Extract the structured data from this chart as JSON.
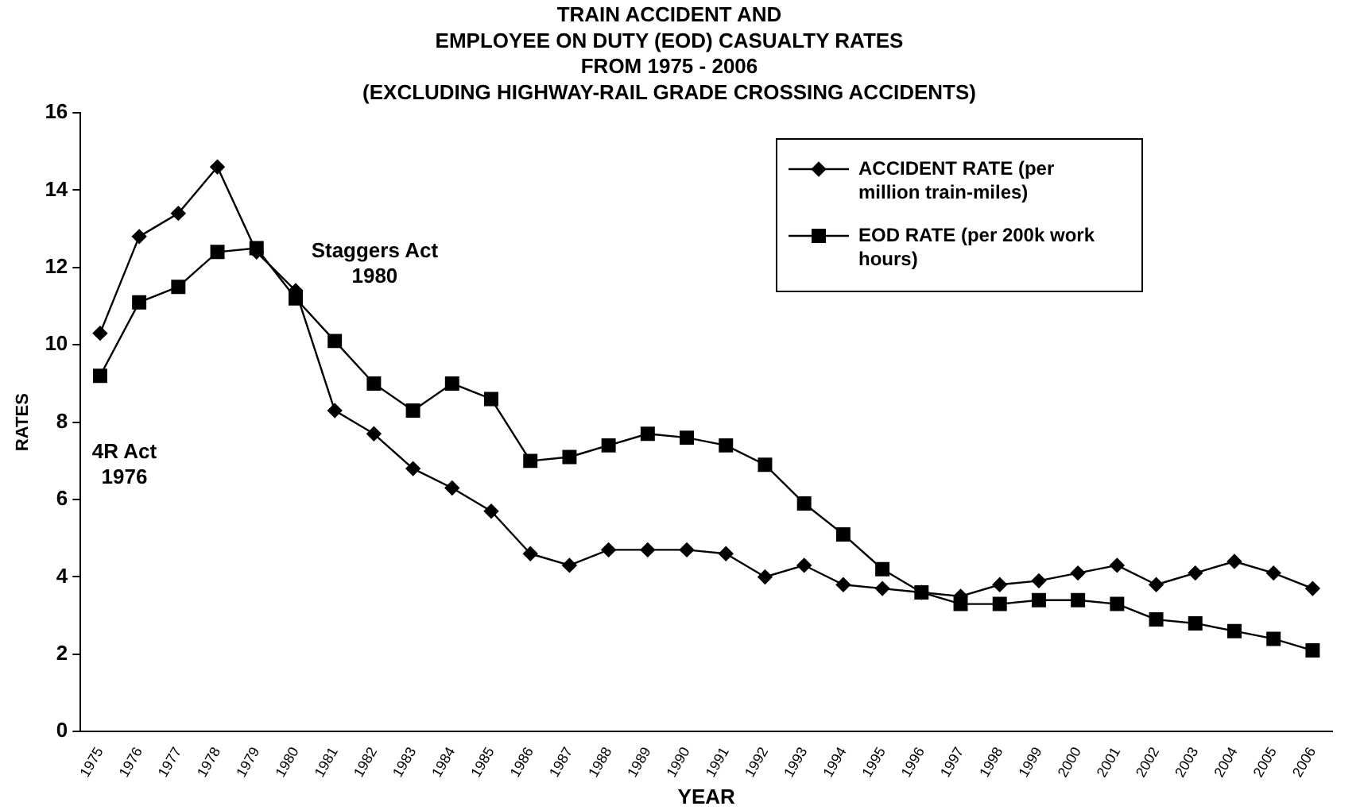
{
  "chart_data": {
    "type": "line",
    "title": "TRAIN ACCIDENT AND\nEMPLOYEE ON DUTY (EOD) CASUALTY RATES\nFROM 1975 - 2006\n(EXCLUDING HIGHWAY-RAIL GRADE CROSSING ACCIDENTS)",
    "xlabel": "YEAR",
    "ylabel": "RATES",
    "categories": [
      "1975",
      "1976",
      "1977",
      "1978",
      "1979",
      "1980",
      "1981",
      "1982",
      "1983",
      "1984",
      "1985",
      "1986",
      "1987",
      "1988",
      "1989",
      "1990",
      "1991",
      "1992",
      "1993",
      "1994",
      "1995",
      "1996",
      "1997",
      "1998",
      "1999",
      "2000",
      "2001",
      "2002",
      "2003",
      "2004",
      "2005",
      "2006"
    ],
    "series": [
      {
        "name": "ACCIDENT RATE (per million train-miles)",
        "color": "#000000",
        "marker": "diamond",
        "values": [
          10.3,
          12.8,
          13.4,
          14.6,
          12.4,
          11.4,
          8.3,
          7.7,
          6.8,
          6.3,
          5.7,
          4.6,
          4.3,
          4.7,
          4.7,
          4.7,
          4.6,
          4.0,
          4.3,
          3.8,
          3.7,
          3.6,
          3.5,
          3.8,
          3.9,
          4.1,
          4.3,
          3.8,
          4.1,
          4.4,
          4.1,
          3.7
        ]
      },
      {
        "name": "EOD RATE (per 200k work hours)",
        "color": "#000000",
        "marker": "square",
        "values": [
          9.2,
          11.1,
          11.5,
          12.4,
          12.5,
          11.2,
          10.1,
          9.0,
          8.3,
          9.0,
          8.6,
          7.0,
          7.1,
          7.4,
          7.7,
          7.6,
          7.4,
          6.9,
          5.9,
          5.1,
          4.2,
          3.6,
          3.3,
          3.3,
          3.4,
          3.4,
          3.3,
          2.9,
          2.8,
          2.6,
          2.4,
          2.1
        ]
      }
    ],
    "ylim": [
      0,
      16
    ],
    "yticks": [
      0,
      2,
      4,
      6,
      8,
      10,
      12,
      14,
      16
    ],
    "grid": false,
    "legend": "top right",
    "annotations": [
      "Staggers Act\n1980",
      "4R Act\n1976"
    ]
  }
}
